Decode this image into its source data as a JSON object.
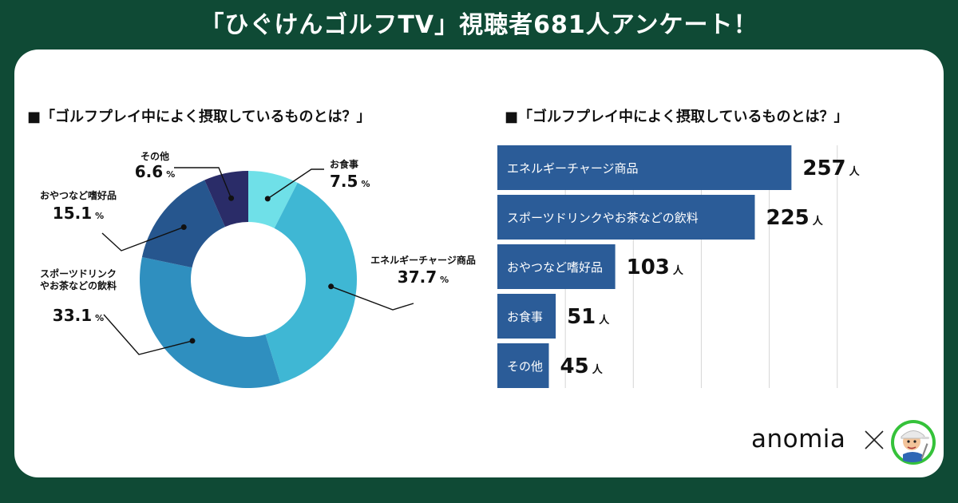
{
  "header": {
    "title": "「ひぐけんゴルフTV」視聴者681人アンケート！"
  },
  "brand": {
    "name": "anomia",
    "partner_icon": "golfer-avatar-icon"
  },
  "chart_data": [
    {
      "type": "pie",
      "title": "■「ゴルフプレイ中によく摂取しているものとは？」",
      "unit": "%",
      "slices": [
        {
          "label": "お食事",
          "value": 7.5,
          "value_label": "7.5",
          "color": "#6fe0e8"
        },
        {
          "label": "エネルギーチャージ商品",
          "value": 37.7,
          "value_label": "37.7",
          "color": "#3fb7d4"
        },
        {
          "label": "スポーツドリンクやお茶などの飲料",
          "value": 33.1,
          "value_label": "33.1",
          "color": "#2f8fbf"
        },
        {
          "label": "おやつなど嗜好品",
          "value": 15.1,
          "value_label": "15.1",
          "color": "#26568e"
        },
        {
          "label": "その他",
          "value": 6.6,
          "value_label": "6.6",
          "color": "#2a2c68"
        }
      ]
    },
    {
      "type": "bar",
      "orientation": "horizontal",
      "title": "■「ゴルフプレイ中によく摂取しているものとは？」",
      "unit": "人",
      "categories": [
        "エネルギーチャージ商品",
        "スポーツドリンクやお茶などの飲料",
        "おやつなど嗜好品",
        "お食事",
        "その他"
      ],
      "values": [
        257,
        225,
        103,
        51,
        45
      ],
      "xlim": [
        0,
        300
      ],
      "grid": true,
      "color": "#2b5c98"
    }
  ]
}
